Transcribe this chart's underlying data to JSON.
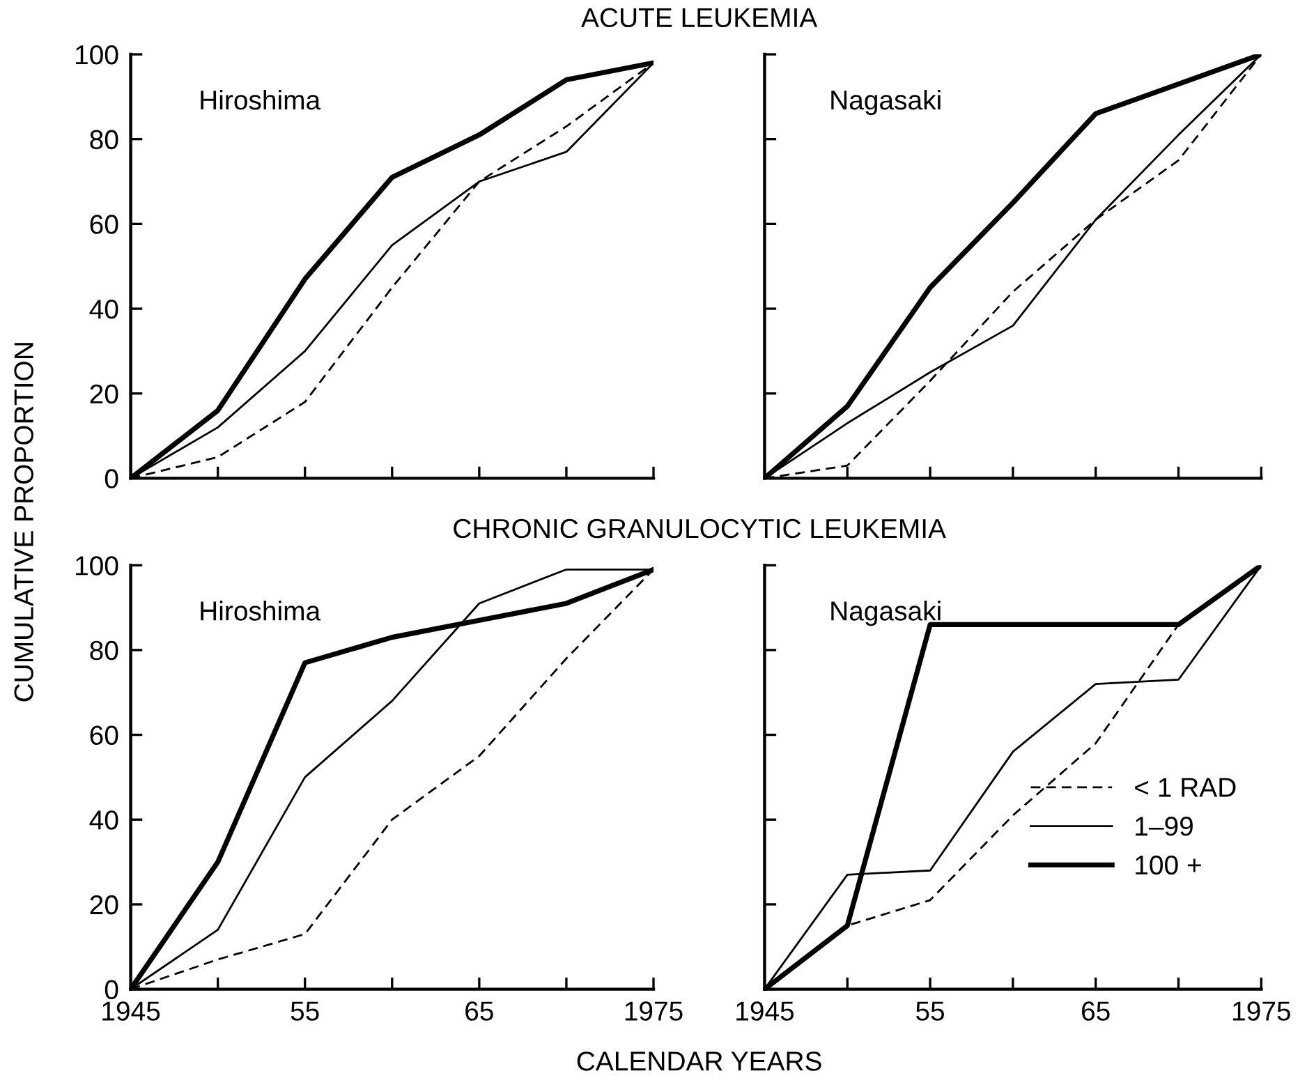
{
  "chart_data": [
    {
      "type": "line",
      "title": "ACUTE LEUKEMIA",
      "ylabel": "CUMULATIVE PROPORTION",
      "annotations": [
        "Hiroshima"
      ],
      "x": [
        1945,
        1950,
        1955,
        1960,
        1965,
        1970,
        1975
      ],
      "xlim": [
        1945,
        1975
      ],
      "xticks": [
        {
          "value": 1945,
          "label": null
        },
        {
          "value": 1950,
          "label": null
        },
        {
          "value": 1955,
          "label": null
        },
        {
          "value": 1960,
          "label": null
        },
        {
          "value": 1965,
          "label": null
        },
        {
          "value": 1970,
          "label": null
        },
        {
          "value": 1975,
          "label": null
        }
      ],
      "ylim": [
        0,
        100
      ],
      "yticks": [
        0,
        20,
        40,
        60,
        80,
        100
      ],
      "tick_labels": "y",
      "grid": false,
      "legend": false,
      "series": [
        {
          "color": "#000000",
          "line_style": "dashed",
          "values": [
            0,
            5,
            18,
            45,
            70,
            83,
            98
          ]
        },
        {
          "color": "#000000",
          "line_style": "solid",
          "values": [
            0,
            12,
            30,
            55,
            70,
            77,
            98
          ]
        },
        {
          "color": "#000000",
          "line_style": "solid",
          "values": [
            0,
            16,
            47,
            71,
            81,
            94,
            98
          ]
        }
      ]
    },
    {
      "type": "line",
      "annotations": [
        "Nagasaki"
      ],
      "x": [
        1945,
        1950,
        1955,
        1960,
        1965,
        1970,
        1975
      ],
      "xlim": [
        1945,
        1975
      ],
      "xticks": [
        {
          "value": 1945,
          "label": null
        },
        {
          "value": 1950,
          "label": null
        },
        {
          "value": 1955,
          "label": null
        },
        {
          "value": 1960,
          "label": null
        },
        {
          "value": 1965,
          "label": null
        },
        {
          "value": 1970,
          "label": null
        },
        {
          "value": 1975,
          "label": null
        }
      ],
      "ylim": [
        0,
        100
      ],
      "yticks": [
        {
          "value": 0,
          "label": null
        },
        {
          "value": 20,
          "label": null
        },
        {
          "value": 40,
          "label": null
        },
        {
          "value": 60,
          "label": null
        },
        {
          "value": 80,
          "label": null
        },
        {
          "value": 100,
          "label": null
        }
      ],
      "tick_labels": false,
      "grid": false,
      "legend": false,
      "series": [
        {
          "color": "#000000",
          "line_style": "dashed",
          "values": [
            0,
            3,
            23,
            44,
            61,
            75,
            100
          ]
        },
        {
          "color": "#000000",
          "line_style": "solid",
          "values": [
            0,
            13,
            25,
            36,
            61,
            81,
            100
          ]
        },
        {
          "color": "#000000",
          "line_style": "solid",
          "values": [
            0,
            17,
            45,
            65,
            86,
            93,
            100
          ]
        }
      ]
    },
    {
      "type": "line",
      "title": "CHRONIC GRANULOCYTIC LEUKEMIA",
      "xlabel": "CALENDAR YEARS",
      "annotations": [
        "Hiroshima"
      ],
      "x": [
        1945,
        1950,
        1955,
        1960,
        1965,
        1970,
        1975
      ],
      "xlim": [
        1945,
        1975
      ],
      "xticks": [
        1945,
        {
          "value": 1950,
          "label": null
        },
        {
          "value": 1955,
          "label": "55"
        },
        {
          "value": 1960,
          "label": null
        },
        {
          "value": 1965,
          "label": "65"
        },
        {
          "value": 1970,
          "label": null
        },
        1975
      ],
      "ylim": [
        0,
        100
      ],
      "yticks": [
        0,
        20,
        40,
        60,
        80,
        100
      ],
      "grid": false,
      "legend": false,
      "series": [
        {
          "color": "#000000",
          "line_style": "dashed",
          "values": [
            0,
            7,
            13,
            40,
            55,
            78,
            99
          ]
        },
        {
          "color": "#000000",
          "line_style": "solid",
          "values": [
            0,
            14,
            50,
            68,
            91,
            99,
            99
          ]
        },
        {
          "color": "#000000",
          "line_style": "solid",
          "values": [
            0,
            30,
            77,
            83,
            87,
            91,
            99
          ]
        }
      ]
    },
    {
      "type": "line",
      "annotations": [
        "Nagasaki"
      ],
      "x": [
        1945,
        1950,
        1955,
        1960,
        1965,
        1970,
        1975
      ],
      "xlim": [
        1945,
        1975
      ],
      "xticks": [
        1945,
        {
          "value": 1950,
          "label": null
        },
        {
          "value": 1955,
          "label": "55"
        },
        {
          "value": 1960,
          "label": null
        },
        {
          "value": 1965,
          "label": "65"
        },
        {
          "value": 1970,
          "label": null
        },
        1975
      ],
      "ylim": [
        0,
        100
      ],
      "yticks": [
        {
          "value": 0,
          "label": null
        },
        {
          "value": 20,
          "label": null
        },
        {
          "value": 40,
          "label": null
        },
        {
          "value": 60,
          "label": null
        },
        {
          "value": 80,
          "label": null
        },
        {
          "value": 100,
          "label": null
        }
      ],
      "tick_labels": "x",
      "grid": false,
      "legend": "bottom right",
      "series": [
        {
          "name": "< 1 RAD",
          "color": "#000000",
          "line_style": "dashed",
          "values": [
            0,
            15,
            21,
            41,
            58,
            86,
            100
          ]
        },
        {
          "name": "1–99",
          "color": "#000000",
          "line_style": "solid",
          "values": [
            0,
            27,
            28,
            56,
            72,
            73,
            100
          ]
        },
        {
          "name": "100 +",
          "color": "#000000",
          "line_style": "solid",
          "values": [
            0,
            15,
            86,
            86,
            86,
            86,
            100
          ]
        }
      ]
    }
  ]
}
